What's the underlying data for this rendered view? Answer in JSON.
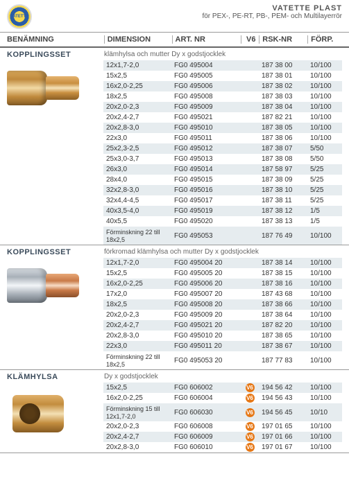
{
  "brand": "VATETTE PLAST",
  "subtitle": "för PEX-, PE-RT, PB-, PEM- och Multilayerrör",
  "logo_text": "VATETTE",
  "columns": {
    "name": "BENÄMNING",
    "dim": "DIMENSION",
    "art": "ART. NR",
    "v6": "V6",
    "rsk": "RSK-NR",
    "forp": "FÖRP."
  },
  "sections": [
    {
      "title": "KOPPLINGSSET",
      "subtitle": "klämhylsa och mutter Dy x godstjocklek",
      "image": "brass",
      "rows": [
        {
          "dim": "12x1,7-2,0",
          "art": "FG0 495004",
          "v6": "",
          "rsk": "187 38 00",
          "forp": "10/100"
        },
        {
          "dim": "15x2,5",
          "art": "FG0 495005",
          "v6": "",
          "rsk": "187 38 01",
          "forp": "10/100"
        },
        {
          "dim": "16x2,0-2,25",
          "art": "FG0 495006",
          "v6": "",
          "rsk": "187 38 02",
          "forp": "10/100"
        },
        {
          "dim": "18x2,5",
          "art": "FG0 495008",
          "v6": "",
          "rsk": "187 38 03",
          "forp": "10/100"
        },
        {
          "dim": "20x2,0-2,3",
          "art": "FG0 495009",
          "v6": "",
          "rsk": "187 38 04",
          "forp": "10/100"
        },
        {
          "dim": "20x2,4-2,7",
          "art": "FG0 495021",
          "v6": "",
          "rsk": "187 82 21",
          "forp": "10/100"
        },
        {
          "dim": "20x2,8-3,0",
          "art": "FG0 495010",
          "v6": "",
          "rsk": "187 38 05",
          "forp": "10/100"
        },
        {
          "dim": "22x3,0",
          "art": "FG0 495011",
          "v6": "",
          "rsk": "187 38 06",
          "forp": "10/100"
        },
        {
          "dim": "25x2,3-2,5",
          "art": "FG0 495012",
          "v6": "",
          "rsk": "187 38 07",
          "forp": "5/50"
        },
        {
          "dim": "25x3,0-3,7",
          "art": "FG0 495013",
          "v6": "",
          "rsk": "187 38 08",
          "forp": "5/50"
        },
        {
          "dim": "26x3,0",
          "art": "FG0 495014",
          "v6": "",
          "rsk": "187 58 97",
          "forp": "5/25"
        },
        {
          "dim": "28x4,0",
          "art": "FG0 495015",
          "v6": "",
          "rsk": "187 38 09",
          "forp": "5/25"
        },
        {
          "dim": "32x2,8-3,0",
          "art": "FG0 495016",
          "v6": "",
          "rsk": "187 38 10",
          "forp": "5/25"
        },
        {
          "dim": "32x4,4-4,5",
          "art": "FG0 495017",
          "v6": "",
          "rsk": "187 38 11",
          "forp": "5/25"
        },
        {
          "dim": "40x3,5-4,0",
          "art": "FG0 495019",
          "v6": "",
          "rsk": "187 38 12",
          "forp": "1/5"
        },
        {
          "dim": "40x5,5",
          "art": "FG0 495020",
          "v6": "",
          "rsk": "187 38 13",
          "forp": "1/5"
        },
        {
          "dim": "Förminskning 22 till 18x2,5",
          "art": "FG0 495053",
          "v6": "",
          "rsk": "187 76 49",
          "forp": "10/100",
          "multi": true
        }
      ]
    },
    {
      "title": "KOPPLINGSSET",
      "subtitle": "förkromad klämhylsa och mutter Dy x godstjocklek",
      "image": "chrome",
      "rows": [
        {
          "dim": "12x1,7-2,0",
          "art": "FG0 495004 20",
          "v6": "",
          "rsk": "187 38 14",
          "forp": "10/100"
        },
        {
          "dim": "15x2,5",
          "art": "FG0 495005 20",
          "v6": "",
          "rsk": "187 38 15",
          "forp": "10/100"
        },
        {
          "dim": "16x2,0-2,25",
          "art": "FG0 495006 20",
          "v6": "",
          "rsk": "187 38 16",
          "forp": "10/100"
        },
        {
          "dim": "17x2,0",
          "art": "FG0 495007 20",
          "v6": "",
          "rsk": "187 43 68",
          "forp": "10/100"
        },
        {
          "dim": "18x2,5",
          "art": "FG0 495008 20",
          "v6": "",
          "rsk": "187 38 66",
          "forp": "10/100"
        },
        {
          "dim": "20x2,0-2,3",
          "art": "FG0 495009 20",
          "v6": "",
          "rsk": "187 38 64",
          "forp": "10/100"
        },
        {
          "dim": "20x2,4-2,7",
          "art": "FG0 495021 20",
          "v6": "",
          "rsk": "187 82 20",
          "forp": "10/100"
        },
        {
          "dim": "20x2,8-3,0",
          "art": "FG0 495010 20",
          "v6": "",
          "rsk": "187 38 65",
          "forp": "10/100"
        },
        {
          "dim": "22x3,0",
          "art": "FG0 495011 20",
          "v6": "",
          "rsk": "187 38 67",
          "forp": "10/100"
        },
        {
          "dim": "Förminskning 22 till 18x2,5",
          "art": "FG0 495053 20",
          "v6": "",
          "rsk": "187 77 83",
          "forp": "10/100",
          "multi": true
        }
      ]
    },
    {
      "title": "KLÄMHYLSA",
      "subtitle": "Dy x godstjocklek",
      "image": "klamhylsa",
      "rows": [
        {
          "dim": "15x2,5",
          "art": "FG0 606002",
          "v6": "V6",
          "rsk": "194 56 42",
          "forp": "10/100"
        },
        {
          "dim": "16x2,0-2,25",
          "art": "FG0 606004",
          "v6": "V6",
          "rsk": "194 56 43",
          "forp": "10/100"
        },
        {
          "dim": "Förminskning 15 till 12x1,7-2,0",
          "art": "FG0 606030",
          "v6": "V6",
          "rsk": "194 56 45",
          "forp": "10/10",
          "multi": true
        },
        {
          "dim": "20x2,0-2,3",
          "art": "FG0 606008",
          "v6": "V6",
          "rsk": "197 01 65",
          "forp": "10/100"
        },
        {
          "dim": "20x2,4-2,7",
          "art": "FG0 606009",
          "v6": "V6",
          "rsk": "197 01 66",
          "forp": "10/100"
        },
        {
          "dim": "20x2,8-3,0",
          "art": "FG0 606010",
          "v6": "V6",
          "rsk": "197 01 67",
          "forp": "10/100"
        }
      ]
    }
  ]
}
